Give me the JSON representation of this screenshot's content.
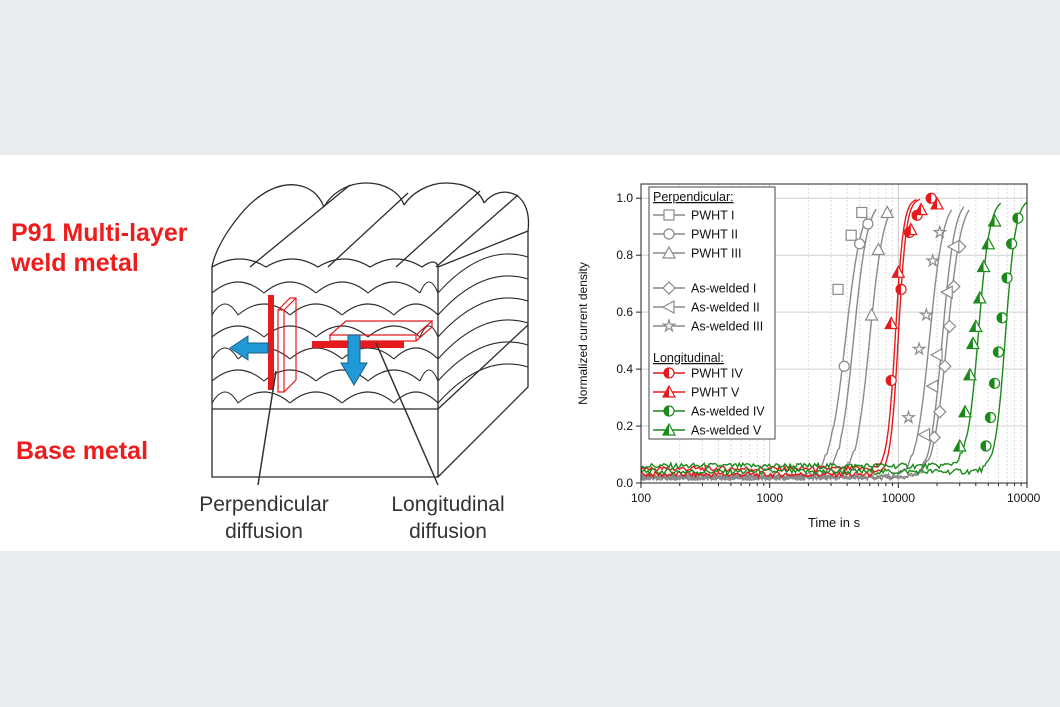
{
  "labels": {
    "title_line1": "P91 Multi-layer",
    "title_line2": "weld metal",
    "base_metal": "Base metal",
    "perpendicular_line1": "Perpendicular",
    "perpendicular_line2": "diffusion",
    "longitudinal_line1": "Longitudinal",
    "longitudinal_line2": "diffusion"
  },
  "colors": {
    "page_background": "#e8ecef",
    "panel_background": "#ffffff",
    "title_red": "#ee1c1c",
    "arrow_blue": "#1f9ad6",
    "grey_series": "#8a8a8a",
    "red_series": "#e41a1c",
    "green_series": "#1a8a1a"
  },
  "chart_data": {
    "type": "line",
    "xlabel": "Time in s",
    "ylabel": "Normalized current density",
    "x_scale": "log",
    "xlim": [
      100,
      100000
    ],
    "ylim": [
      0,
      1.05
    ],
    "x_ticks": [
      "100",
      "1000",
      "10000",
      "100000"
    ],
    "y_ticks": [
      "0.0",
      "0.2",
      "0.4",
      "0.6",
      "0.8",
      "1.0"
    ],
    "grid": true,
    "legend_location": "top-left",
    "legend": {
      "perpendicular_heading": "Perpendicular:",
      "longitudinal_heading": "Longitudinal:"
    },
    "series": [
      {
        "name": "PWHT I",
        "group": "perpendicular",
        "marker": "square",
        "color": "#8a8a8a",
        "t_rise": 3900,
        "k": 7,
        "base": 0.02,
        "markers": [
          {
            "x": 3400,
            "y": 0.68
          },
          {
            "x": 4300,
            "y": 0.87
          },
          {
            "x": 5200,
            "y": 0.95
          }
        ]
      },
      {
        "name": "PWHT II",
        "group": "perpendicular",
        "marker": "circle",
        "color": "#8a8a8a",
        "t_rise": 4500,
        "k": 8,
        "base": 0.02,
        "markers": [
          {
            "x": 3800,
            "y": 0.41
          },
          {
            "x": 5000,
            "y": 0.84
          },
          {
            "x": 5800,
            "y": 0.91
          }
        ]
      },
      {
        "name": "PWHT III",
        "group": "perpendicular",
        "marker": "triangle",
        "color": "#8a8a8a",
        "t_rise": 6000,
        "k": 8,
        "base": 0.02,
        "markers": [
          {
            "x": 6200,
            "y": 0.59
          },
          {
            "x": 7000,
            "y": 0.82
          },
          {
            "x": 8200,
            "y": 0.95
          }
        ]
      },
      {
        "name": "As-welded I",
        "group": "perpendicular",
        "marker": "diamond",
        "color": "#8a8a8a",
        "t_rise": 24000,
        "k": 8,
        "base": 0.02,
        "markers": [
          {
            "x": 19000,
            "y": 0.16
          },
          {
            "x": 21000,
            "y": 0.25
          },
          {
            "x": 23000,
            "y": 0.41
          },
          {
            "x": 25000,
            "y": 0.55
          },
          {
            "x": 27000,
            "y": 0.69
          },
          {
            "x": 30000,
            "y": 0.83
          }
        ]
      },
      {
        "name": "As-welded II",
        "group": "perpendicular",
        "marker": "tri-left",
        "color": "#8a8a8a",
        "t_rise": 22000,
        "k": 9,
        "base": 0.02,
        "markers": [
          {
            "x": 16000,
            "y": 0.17
          },
          {
            "x": 18500,
            "y": 0.34
          },
          {
            "x": 20000,
            "y": 0.45
          },
          {
            "x": 24000,
            "y": 0.67
          },
          {
            "x": 27000,
            "y": 0.83
          }
        ]
      },
      {
        "name": "As-welded III",
        "group": "perpendicular",
        "marker": "star",
        "color": "#8a8a8a",
        "t_rise": 17500,
        "k": 8,
        "base": 0.02,
        "markers": [
          {
            "x": 12000,
            "y": 0.23
          },
          {
            "x": 14500,
            "y": 0.47
          },
          {
            "x": 16500,
            "y": 0.59
          },
          {
            "x": 18500,
            "y": 0.78
          },
          {
            "x": 21000,
            "y": 0.88
          }
        ]
      },
      {
        "name": "PWHT IV",
        "group": "longitudinal",
        "marker": "circle-half",
        "color": "#e41a1c",
        "t_rise": 10000,
        "k": 14,
        "base": 0.03,
        "markers": [
          {
            "x": 8800,
            "y": 0.36
          },
          {
            "x": 10500,
            "y": 0.68
          },
          {
            "x": 12200,
            "y": 0.88
          },
          {
            "x": 14000,
            "y": 0.94
          },
          {
            "x": 18000,
            "y": 1.0
          }
        ]
      },
      {
        "name": "PWHT V",
        "group": "longitudinal",
        "marker": "triangle-half",
        "color": "#e41a1c",
        "t_rise": 9500,
        "k": 14,
        "base": 0.05,
        "markers": [
          {
            "x": 8800,
            "y": 0.56
          },
          {
            "x": 10000,
            "y": 0.74
          },
          {
            "x": 12500,
            "y": 0.89
          },
          {
            "x": 15000,
            "y": 0.96
          },
          {
            "x": 20000,
            "y": 0.98
          }
        ]
      },
      {
        "name": "As-welded IV",
        "group": "longitudinal",
        "marker": "circle-half",
        "color": "#1a8a1a",
        "t_rise": 68000,
        "k": 11,
        "base": 0.04,
        "markers": [
          {
            "x": 48000,
            "y": 0.13
          },
          {
            "x": 52000,
            "y": 0.23
          },
          {
            "x": 56000,
            "y": 0.35
          },
          {
            "x": 60000,
            "y": 0.46
          },
          {
            "x": 64000,
            "y": 0.58
          },
          {
            "x": 70000,
            "y": 0.72
          },
          {
            "x": 76000,
            "y": 0.84
          },
          {
            "x": 85000,
            "y": 0.93
          }
        ]
      },
      {
        "name": "As-welded V",
        "group": "longitudinal",
        "marker": "triangle-half",
        "color": "#1a8a1a",
        "t_rise": 42000,
        "k": 10,
        "base": 0.06,
        "markers": [
          {
            "x": 30000,
            "y": 0.13
          },
          {
            "x": 33000,
            "y": 0.25
          },
          {
            "x": 36000,
            "y": 0.38
          },
          {
            "x": 38000,
            "y": 0.49
          },
          {
            "x": 40000,
            "y": 0.55
          },
          {
            "x": 43000,
            "y": 0.65
          },
          {
            "x": 46000,
            "y": 0.76
          },
          {
            "x": 50000,
            "y": 0.84
          },
          {
            "x": 56000,
            "y": 0.92
          }
        ]
      }
    ]
  }
}
